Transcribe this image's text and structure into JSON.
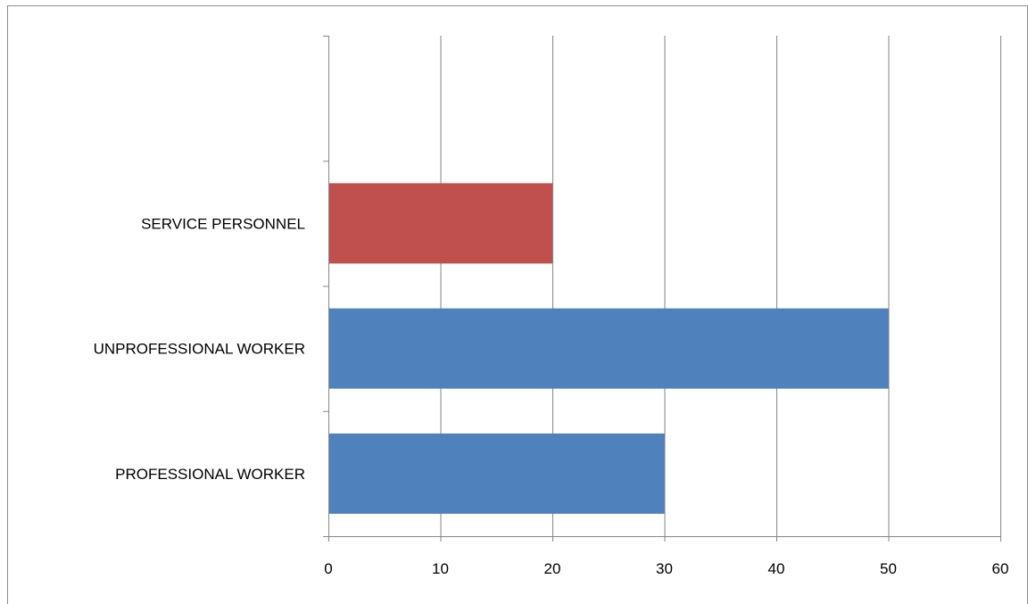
{
  "chart_data": {
    "type": "bar",
    "orientation": "horizontal",
    "title": "",
    "xlabel": "",
    "ylabel": "",
    "categories": [
      "PROFESSIONAL WORKER",
      "UNPROFESSIONAL WORKER",
      "SERVICE PERSONNEL"
    ],
    "values": [
      30,
      50,
      20
    ],
    "bar_colors": [
      "#4f81bd",
      "#4f81bd",
      "#c0504d"
    ],
    "xlim": [
      0,
      60
    ],
    "x_ticks": [
      0,
      10,
      20,
      30,
      40,
      50,
      60
    ],
    "grid": "vertical",
    "legend": "none"
  },
  "colors": {
    "gridline": "#868686",
    "axis": "#868686",
    "frame": "#8c8c8c"
  }
}
